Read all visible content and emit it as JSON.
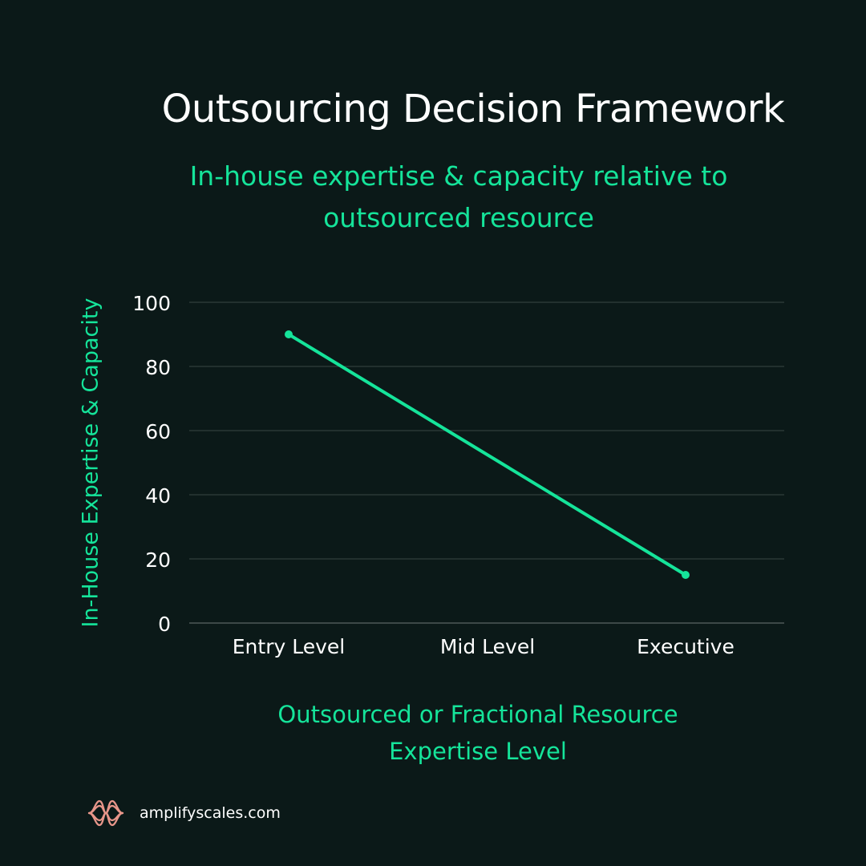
{
  "title": "Outsourcing Decision Framework",
  "subtitle_lines": [
    "In-house expertise & capacity relative to",
    "outsourced resource"
  ],
  "ylabel": "In-House Expertise & Capacity",
  "xlabel_lines": [
    "Outsourced or Fractional Resource",
    "Expertise Level"
  ],
  "footer": {
    "site": "amplifyscales.com",
    "logo_icon": "amplify-wave-logo-icon"
  },
  "colors": {
    "background": "#0b1918",
    "accent": "#15e49a",
    "grid": "#3a4644",
    "text": "#ffffff",
    "logo": "#e8968a"
  },
  "chart_data": {
    "type": "line",
    "categories": [
      "Entry Level",
      "Mid Level",
      "Executive"
    ],
    "series": [
      {
        "name": "In-House Expertise & Capacity",
        "x": [
          "Entry Level",
          "Executive"
        ],
        "values": [
          90,
          15
        ]
      }
    ],
    "ylim": [
      0,
      100
    ],
    "yticks": [
      0,
      20,
      40,
      60,
      80,
      100
    ],
    "grid": true,
    "title": "Outsourcing Decision Framework",
    "xlabel": "Outsourced or Fractional Resource Expertise Level",
    "ylabel": "In-House Expertise & Capacity"
  }
}
